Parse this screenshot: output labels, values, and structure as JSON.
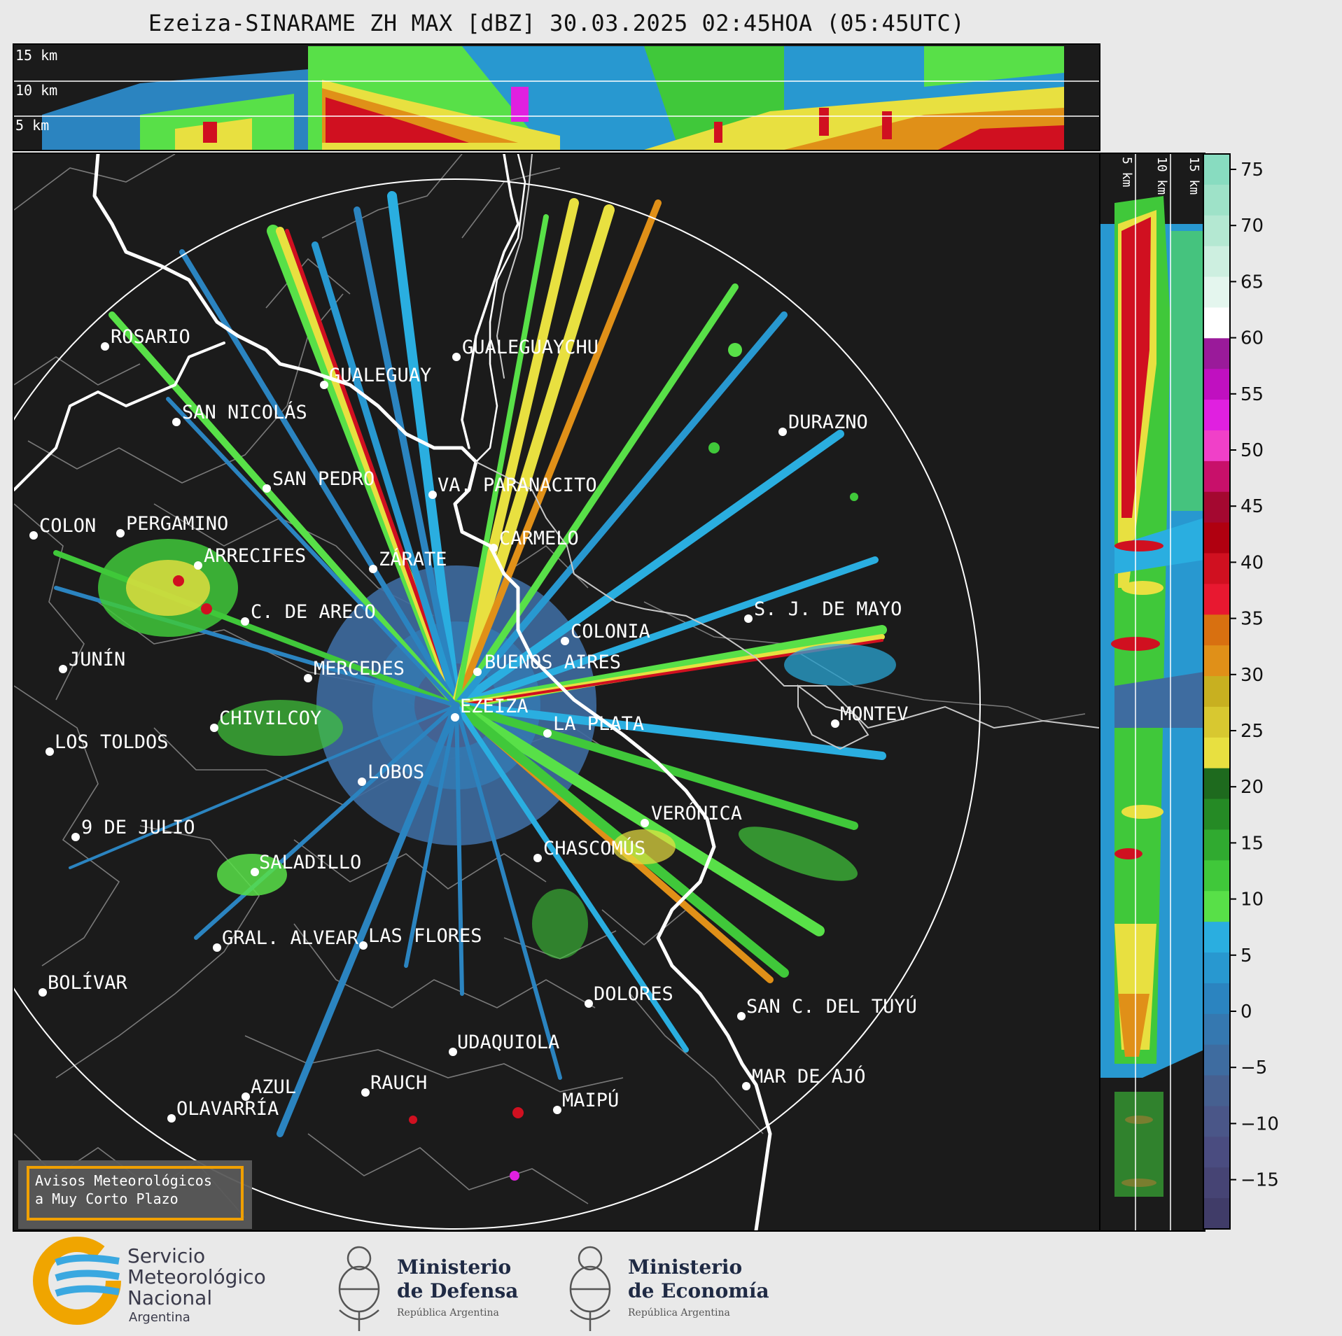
{
  "title": "Ezeiza-SINARAME ZH MAX [dBZ] 30.03.2025 02:45HOA (05:45UTC)",
  "top_panel": {
    "height_labels": [
      "15 km",
      "10 km",
      "5 km"
    ]
  },
  "side_panel": {
    "height_labels": [
      "5 km",
      "10 km",
      "15 km"
    ]
  },
  "colorbar": {
    "ticks": [
      "75",
      "70",
      "65",
      "60",
      "55",
      "50",
      "45",
      "40",
      "35",
      "30",
      "25",
      "20",
      "15",
      "10",
      "5",
      "0",
      "−5",
      "−10",
      "−15"
    ],
    "bands": [
      {
        "color": "#88dcc0"
      },
      {
        "color": "#9ee2c8"
      },
      {
        "color": "#b4e8d2"
      },
      {
        "color": "#cdefe0"
      },
      {
        "color": "#e4f6ee"
      },
      {
        "color": "#ffffff"
      },
      {
        "color": "#9a1a9a"
      },
      {
        "color": "#c010c0"
      },
      {
        "color": "#e020e0"
      },
      {
        "color": "#f040c8"
      },
      {
        "color": "#c8106a"
      },
      {
        "color": "#a40830"
      },
      {
        "color": "#b00010"
      },
      {
        "color": "#d01020"
      },
      {
        "color": "#e81830"
      },
      {
        "color": "#d87010"
      },
      {
        "color": "#e09018"
      },
      {
        "color": "#c8b020"
      },
      {
        "color": "#d8c830"
      },
      {
        "color": "#e8e040"
      },
      {
        "color": "#1e6a1e"
      },
      {
        "color": "#258a25"
      },
      {
        "color": "#30aa30"
      },
      {
        "color": "#40c83a"
      },
      {
        "color": "#58e048"
      },
      {
        "color": "#2aaee0"
      },
      {
        "color": "#2898d0"
      },
      {
        "color": "#2b84c0"
      },
      {
        "color": "#3578b0"
      },
      {
        "color": "#3e6ca0"
      },
      {
        "color": "#466090"
      },
      {
        "color": "#4a5688"
      },
      {
        "color": "#4a4c80"
      },
      {
        "color": "#464474"
      },
      {
        "color": "#403c68"
      }
    ]
  },
  "cities": [
    {
      "name": "ROSARIO"
    },
    {
      "name": "GUALEGUAYCHU"
    },
    {
      "name": "GUALEGUAY"
    },
    {
      "name": "SAN NICOLÁS"
    },
    {
      "name": "DURAZNO"
    },
    {
      "name": "SAN PEDRO"
    },
    {
      "name": "VA. PARANACITO"
    },
    {
      "name": "COLON"
    },
    {
      "name": "PERGAMINO"
    },
    {
      "name": "CARMELO"
    },
    {
      "name": "ARRECIFES"
    },
    {
      "name": "ZÁRATE"
    },
    {
      "name": "S. J. DE MAYO"
    },
    {
      "name": "C. DE ARECO"
    },
    {
      "name": "COLONIA"
    },
    {
      "name": "JUNÍN"
    },
    {
      "name": "BUENOS AIRES"
    },
    {
      "name": "MERCEDES"
    },
    {
      "name": "EZEIZA"
    },
    {
      "name": "MONTEV"
    },
    {
      "name": "CHIVILCOY"
    },
    {
      "name": "LA PLATA"
    },
    {
      "name": "LOS TOLDOS"
    },
    {
      "name": "LOBOS"
    },
    {
      "name": "VERÓNICA"
    },
    {
      "name": "9 DE JULIO"
    },
    {
      "name": "CHASCOMÚS"
    },
    {
      "name": "SALADILLO"
    },
    {
      "name": "GRAL. ALVEAR"
    },
    {
      "name": "LAS FLORES"
    },
    {
      "name": "BOLÍVAR"
    },
    {
      "name": "DOLORES"
    },
    {
      "name": "SAN C. DEL TUYÚ"
    },
    {
      "name": "UDAQUIOLA"
    },
    {
      "name": "MAR DE AJÓ"
    },
    {
      "name": "AZUL"
    },
    {
      "name": "RAUCH"
    },
    {
      "name": "OLAVARRÍA"
    },
    {
      "name": "MAIPÚ"
    }
  ],
  "warning_box": {
    "line1": "Avisos Meteorológicos",
    "line2": "a Muy Corto Plazo"
  },
  "logos": {
    "smn": {
      "line1": "Servicio",
      "line2": "Meteorológico",
      "line3": "Nacional",
      "line4": "Argentina"
    },
    "defensa": {
      "line1": "Ministerio",
      "line2": "de Defensa",
      "line3": "República Argentina"
    },
    "economia": {
      "line1": "Ministerio",
      "line2": "de Economía",
      "line3": "República Argentina"
    }
  }
}
